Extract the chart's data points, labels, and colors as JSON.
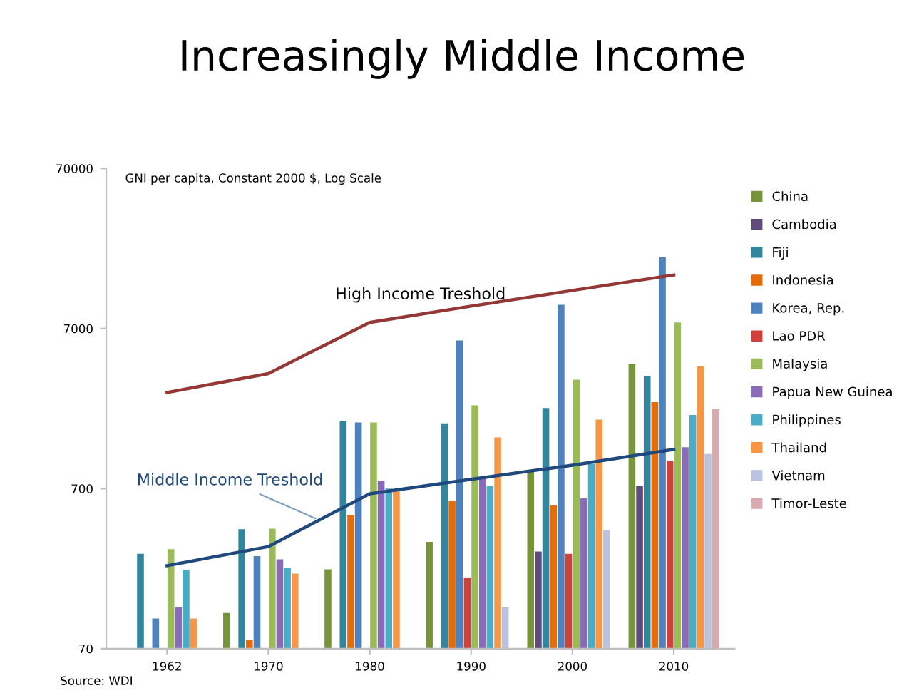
{
  "chart_data": {
    "type": "bar",
    "title": "Increasingly Middle Income",
    "annotations": [
      "GNI per capita, Constant 2000 $, Log Scale",
      "Source: WDI"
    ],
    "categories": [
      "1962",
      "1970",
      "1980",
      "1990",
      "2000",
      "2010"
    ],
    "log": true,
    "ylim": [
      70,
      70000
    ],
    "yticks": [
      70,
      700,
      7000,
      70000
    ],
    "grid": false,
    "legend": "right",
    "series": [
      {
        "name": "China",
        "color": "#77933c",
        "values": [
          null,
          117,
          219,
          325,
          900,
          4200
        ]
      },
      {
        "name": "Cambodia",
        "color": "#604a7b",
        "values": [
          null,
          null,
          null,
          null,
          283,
          726
        ]
      },
      {
        "name": "Fiji",
        "color": "#31859c",
        "values": [
          274,
          390,
          1850,
          1790,
          2230,
          3540
        ]
      },
      {
        "name": "Indonesia",
        "color": "#e46c0a",
        "values": [
          null,
          79,
          480,
          590,
          550,
          2430
        ]
      },
      {
        "name": "Korea, Rep.",
        "color": "#4f81bd",
        "values": [
          108,
          265,
          1810,
          5900,
          9840,
          19500
        ]
      },
      {
        "name": "Lao PDR",
        "color": "#d0403c",
        "values": [
          null,
          null,
          null,
          195,
          274,
          1040
        ]
      },
      {
        "name": "Malaysia",
        "color": "#9bbb59",
        "values": [
          293,
          393,
          1810,
          2320,
          3350,
          7640
        ]
      },
      {
        "name": "Papua New Guinea",
        "color": "#8a6bb8",
        "values": [
          127,
          253,
          780,
          815,
          609,
          1270
        ]
      },
      {
        "name": "Philippines",
        "color": "#4bacc6",
        "values": [
          217,
          225,
          700,
          726,
          1000,
          2020
        ]
      },
      {
        "name": "Thailand",
        "color": "#f79646",
        "values": [
          108,
          206,
          690,
          1460,
          1890,
          4050
        ]
      },
      {
        "name": "Vietnam",
        "color": "#b9c3e0",
        "values": [
          null,
          null,
          null,
          127,
          385,
          1150
        ]
      },
      {
        "name": "Timor-Leste",
        "color": "#d9a9b0",
        "values": [
          null,
          null,
          null,
          null,
          null,
          2200
        ]
      },
      {
        "name": "High Income Treshold",
        "type": "line",
        "color": "#953735",
        "values": [
          2790,
          3660,
          7640,
          9650,
          12100,
          15100
        ]
      },
      {
        "name": "Middle Income Treshold",
        "type": "line",
        "color": "#1f497d",
        "values": [
          231,
          304,
          650,
          800,
          980,
          1230
        ]
      }
    ]
  }
}
